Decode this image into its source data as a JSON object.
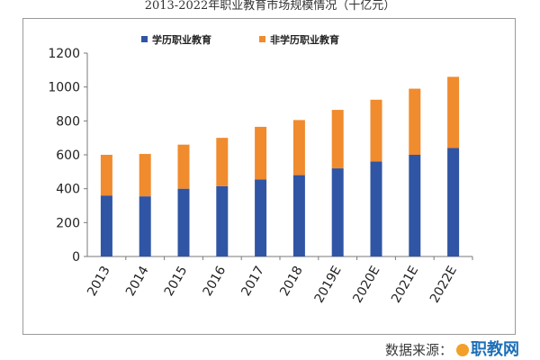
{
  "chart_data": {
    "type": "bar",
    "stacked": true,
    "title": "2013-2022年职业教育市场规模情况（十亿元）",
    "categories": [
      "2013",
      "2014",
      "2015",
      "2016",
      "2017",
      "2018",
      "2019E",
      "2020E",
      "2021E",
      "2022E"
    ],
    "series": [
      {
        "name": "学历职业教育",
        "color": "#2f55a4",
        "values": [
          360,
          355,
          400,
          415,
          455,
          480,
          520,
          560,
          600,
          640
        ]
      },
      {
        "name": "非学历职业教育",
        "color": "#f08b2e",
        "values": [
          240,
          250,
          260,
          285,
          310,
          325,
          345,
          365,
          390,
          420
        ]
      }
    ],
    "ylim": [
      0,
      1200
    ],
    "yticks": [
      0,
      200,
      400,
      600,
      800,
      1000,
      1200
    ],
    "legend_position": "top-center",
    "grid": false
  },
  "footer": {
    "source_label": "数据来源：",
    "watermark_text": "职教网"
  }
}
